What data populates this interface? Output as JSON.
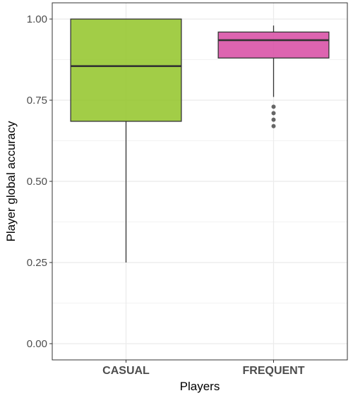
{
  "chart_data": {
    "type": "box",
    "xlabel": "Players",
    "ylabel": "Player global accuracy",
    "ylim": [
      -0.05,
      1.05
    ],
    "yticks": [
      0.0,
      0.25,
      0.5,
      0.75,
      1.0
    ],
    "ytick_labels": [
      "0.00",
      "0.25",
      "0.50",
      "0.75",
      "1.00"
    ],
    "grid": true,
    "categories": [
      "CASUAL",
      "FREQUENT"
    ],
    "boxes": [
      {
        "category": "CASUAL",
        "whisker_low": 0.25,
        "q1": 0.685,
        "median": 0.855,
        "q3": 1.0,
        "whisker_high": 1.0,
        "outliers": [],
        "color": "#8dc21f"
      },
      {
        "category": "FREQUENT",
        "whisker_low": 0.76,
        "q1": 0.88,
        "median": 0.935,
        "q3": 0.96,
        "whisker_high": 0.98,
        "outliers": [
          0.67,
          0.69,
          0.71,
          0.73
        ],
        "color": "#d6429f"
      }
    ]
  }
}
